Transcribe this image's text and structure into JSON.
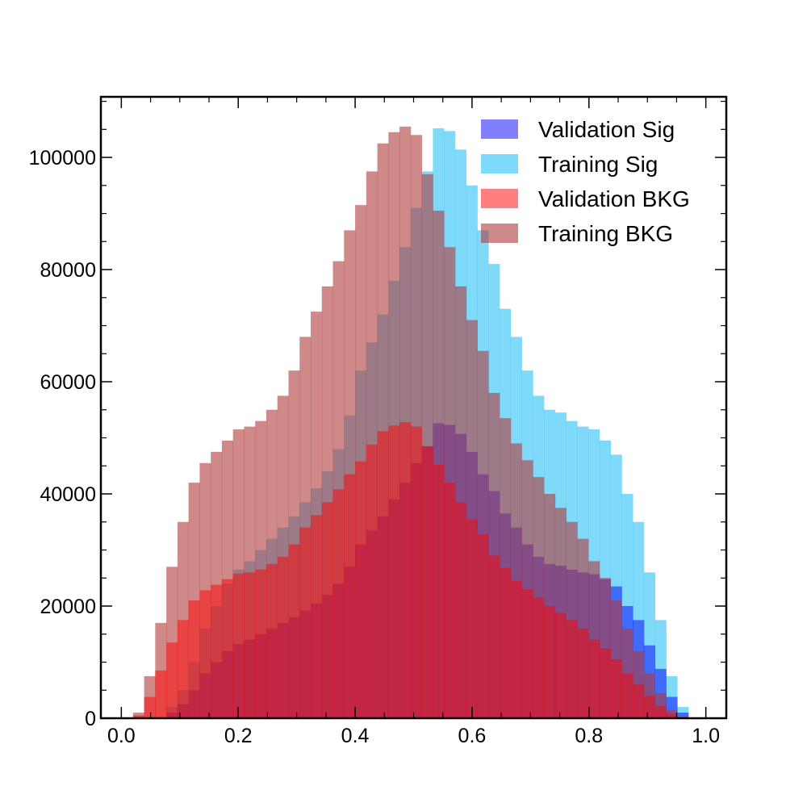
{
  "chart_data": {
    "type": "histogram",
    "title": "",
    "xlabel": "",
    "ylabel": "",
    "xlim": [
      -0.035,
      1.035
    ],
    "ylim": [
      0,
      110800
    ],
    "x_ticks": [
      "0.0",
      "0.2",
      "0.4",
      "0.6",
      "0.8",
      "1.0"
    ],
    "x_tick_values": [
      0.0,
      0.2,
      0.4,
      0.6,
      0.8,
      1.0
    ],
    "y_ticks": [
      "0",
      "20000",
      "40000",
      "60000",
      "80000",
      "100000"
    ],
    "y_tick_values": [
      0,
      20000,
      40000,
      60000,
      80000,
      100000
    ],
    "grid": false,
    "legend_position": "top-right",
    "bin_edges": [
      0.02,
      0.039,
      0.058,
      0.077,
      0.096,
      0.115,
      0.134,
      0.153,
      0.172,
      0.191,
      0.21,
      0.229,
      0.248,
      0.267,
      0.286,
      0.305,
      0.324,
      0.343,
      0.362,
      0.381,
      0.4,
      0.419,
      0.438,
      0.457,
      0.476,
      0.495,
      0.514,
      0.533,
      0.552,
      0.571,
      0.59,
      0.609,
      0.628,
      0.647,
      0.666,
      0.685,
      0.704,
      0.723,
      0.742,
      0.761,
      0.78,
      0.799,
      0.818,
      0.837,
      0.856,
      0.875,
      0.894,
      0.913,
      0.932,
      0.951,
      0.97
    ],
    "series": [
      {
        "name": "Training Sig",
        "color": "#29bff5",
        "alpha": 0.6,
        "values": [
          0,
          0,
          0,
          2000,
          5000,
          10000,
          16000,
          20000,
          24000,
          26500,
          28000,
          30000,
          32000,
          34000,
          36000,
          38500,
          41000,
          44000,
          48000,
          54000,
          62000,
          67000,
          72000,
          78000,
          84000,
          91000,
          97500,
          105200,
          104700,
          101400,
          95000,
          87000,
          81000,
          73000,
          68000,
          62000,
          57500,
          55000,
          54500,
          53000,
          52000,
          51500,
          49500,
          47000,
          40000,
          35000,
          26000,
          17500,
          7500,
          2000
        ]
      },
      {
        "name": "Validation Sig",
        "color": "#0000ff",
        "alpha": 0.5,
        "values": [
          0,
          0,
          0,
          1000,
          2500,
          5000,
          8000,
          10000,
          12000,
          13200,
          14000,
          15000,
          16000,
          17000,
          18000,
          19200,
          20500,
          22000,
          24000,
          27000,
          31000,
          33500,
          36000,
          39000,
          42000,
          45500,
          48500,
          52600,
          52300,
          50700,
          47500,
          43500,
          40500,
          36500,
          34000,
          31000,
          28800,
          27500,
          27200,
          26500,
          26000,
          25700,
          24800,
          23500,
          20000,
          17500,
          13000,
          8800,
          3800,
          1000
        ]
      },
      {
        "name": "Training BKG",
        "color": "#b03a3a",
        "alpha": 0.6,
        "values": [
          1000,
          7500,
          17000,
          27000,
          35000,
          42000,
          45500,
          47500,
          49500,
          51500,
          52000,
          53000,
          55000,
          57500,
          62000,
          68000,
          72500,
          77000,
          81500,
          87000,
          91500,
          97500,
          102500,
          104500,
          105500,
          104000,
          97000,
          90500,
          84000,
          77000,
          71000,
          65500,
          58000,
          53500,
          49000,
          46000,
          43000,
          40000,
          37500,
          35000,
          32000,
          28000,
          25000,
          21000,
          16000,
          12000,
          8000,
          4500,
          1500,
          300
        ]
      },
      {
        "name": "Validation BKG",
        "color": "#ff0000",
        "alpha": 0.5,
        "values": [
          500,
          3800,
          8500,
          13500,
          17500,
          21000,
          22800,
          23800,
          24800,
          25800,
          26000,
          26500,
          27500,
          28800,
          31000,
          34000,
          36200,
          38500,
          40800,
          43500,
          45800,
          48800,
          51200,
          52200,
          52800,
          52000,
          48500,
          45200,
          42000,
          38500,
          35500,
          32800,
          29000,
          26800,
          24500,
          23000,
          21500,
          20000,
          18800,
          17500,
          16000,
          14000,
          12500,
          10500,
          8000,
          6000,
          4000,
          2200,
          800,
          150
        ]
      }
    ],
    "legend_order": [
      "Validation Sig",
      "Training Sig",
      "Validation BKG",
      "Training BKG"
    ]
  }
}
